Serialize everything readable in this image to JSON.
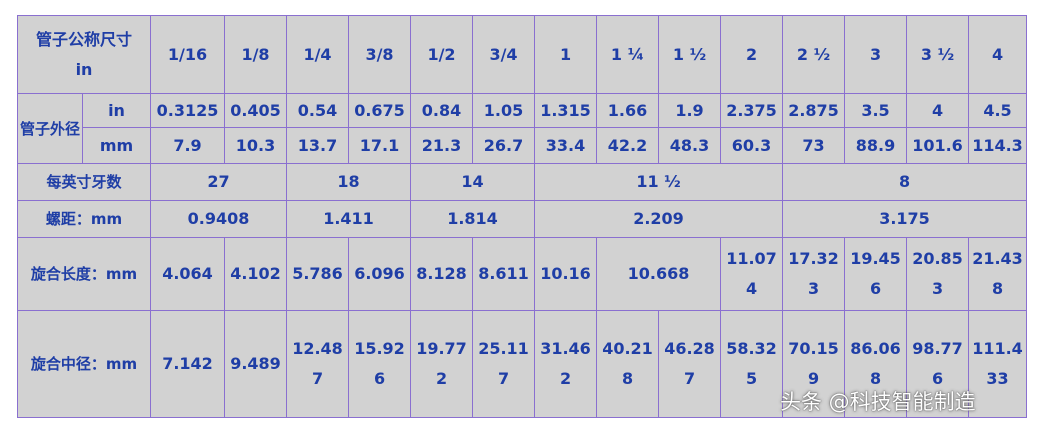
{
  "header": {
    "label": "管子公称尺寸",
    "unit": "in",
    "sizes": [
      "1/16",
      "1/8",
      "1/4",
      "3/8",
      "1/2",
      "3/4",
      "1",
      "1 ¼",
      "1 ½",
      "2",
      "2 ½",
      "3",
      "3 ½",
      "4"
    ]
  },
  "outer_diameter": {
    "label": "管子外径",
    "rows": [
      {
        "unit": "in",
        "cells": [
          "0.3125",
          "0.405",
          "0.54",
          "0.675",
          "0.84",
          "1.05",
          "1.315",
          "1.66",
          "1.9",
          "2.375",
          "2.875",
          "3.5",
          "4",
          "4.5"
        ]
      },
      {
        "unit": "mm",
        "cells": [
          "7.9",
          "10.3",
          "13.7",
          "17.1",
          "21.3",
          "26.7",
          "33.4",
          "42.2",
          "48.3",
          "60.3",
          "73",
          "88.9",
          "101.6",
          "114.3"
        ]
      }
    ]
  },
  "rows": [
    {
      "label": "每英寸牙数",
      "cells": [
        {
          "text": "27",
          "span": 2
        },
        {
          "text": "18",
          "span": 2
        },
        {
          "text": "14",
          "span": 2
        },
        {
          "text": "11 ½",
          "span": 4
        },
        {
          "text": "8",
          "span": 4
        }
      ]
    },
    {
      "label": "螺距：mm",
      "cells": [
        {
          "text": "0.9408",
          "span": 2
        },
        {
          "text": "1.411",
          "span": 2
        },
        {
          "text": "1.814",
          "span": 2
        },
        {
          "text": "2.209",
          "span": 4
        },
        {
          "text": "3.175",
          "span": 4
        }
      ]
    },
    {
      "label": "旋合长度：mm",
      "cells": [
        {
          "text": "4.064",
          "span": 1
        },
        {
          "text": "4.102",
          "span": 1
        },
        {
          "text": "5.786",
          "span": 1
        },
        {
          "text": "6.096",
          "span": 1
        },
        {
          "text": "8.128",
          "span": 1
        },
        {
          "text": "8.611",
          "span": 1
        },
        {
          "text": "10.16",
          "span": 1
        },
        {
          "text": "10.668",
          "span": 2
        },
        {
          "text": "11.074",
          "span": 1
        },
        {
          "text": "17.323",
          "span": 1
        },
        {
          "text": "19.456",
          "span": 1
        },
        {
          "text": "20.853",
          "span": 1
        },
        {
          "text": "21.438",
          "span": 1
        }
      ]
    },
    {
      "label": "旋合中径：mm",
      "cells": [
        {
          "text": "7.142",
          "span": 1
        },
        {
          "text": "9.489",
          "span": 1
        },
        {
          "text": "12.487",
          "span": 1
        },
        {
          "text": "15.926",
          "span": 1
        },
        {
          "text": "19.772",
          "span": 1
        },
        {
          "text": "25.117",
          "span": 1
        },
        {
          "text": "31.462",
          "span": 1
        },
        {
          "text": "40.218",
          "span": 1
        },
        {
          "text": "46.287",
          "span": 1
        },
        {
          "text": "58.325",
          "span": 1
        },
        {
          "text": "70.159",
          "span": 1
        },
        {
          "text": "86.068",
          "span": 1
        },
        {
          "text": "98.776",
          "span": 1
        },
        {
          "text": "111.433",
          "span": 1
        }
      ]
    }
  ],
  "watermark": "头条 @科技智能制造"
}
